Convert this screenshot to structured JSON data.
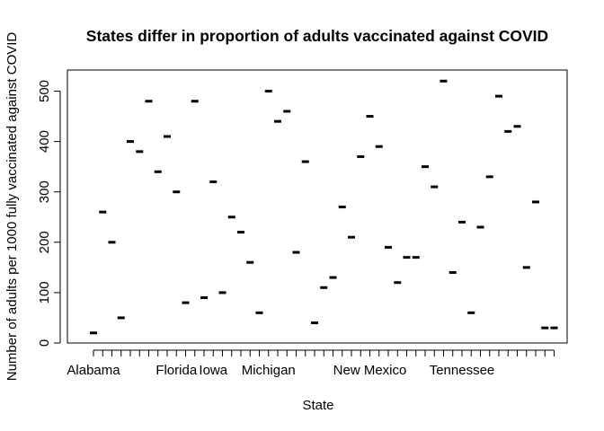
{
  "chart_data": {
    "type": "boxplot",
    "title": "States differ in proportion of adults vaccinated against COVID",
    "xlabel": "State",
    "ylabel": "Number of adults per 1000 fully vaccinated against COVID",
    "ylim": [
      0,
      540
    ],
    "yticks": [
      0,
      100,
      200,
      300,
      400,
      500
    ],
    "grid": false,
    "legend": "none",
    "categories": [
      "Alabama",
      "",
      "",
      "",
      "",
      "",
      "",
      "",
      "",
      "Florida",
      "",
      "",
      "",
      "Iowa",
      "",
      "",
      "",
      "",
      "",
      "Michigan",
      "",
      "",
      "",
      "",
      "",
      "",
      "",
      "",
      "",
      "",
      "New Mexico",
      "",
      "",
      "",
      "",
      "",
      "",
      "",
      "",
      "",
      "Tennessee",
      "",
      "",
      "",
      "",
      "",
      "",
      "",
      "",
      "",
      ""
    ],
    "values": [
      20,
      260,
      200,
      50,
      400,
      380,
      480,
      340,
      410,
      300,
      80,
      480,
      90,
      320,
      100,
      250,
      220,
      160,
      60,
      500,
      440,
      460,
      180,
      360,
      40,
      110,
      130,
      270,
      210,
      370,
      450,
      390,
      190,
      120,
      170,
      170,
      350,
      310,
      520,
      140,
      240,
      60,
      230,
      330,
      490,
      420,
      430,
      150,
      280,
      30,
      30
    ]
  }
}
